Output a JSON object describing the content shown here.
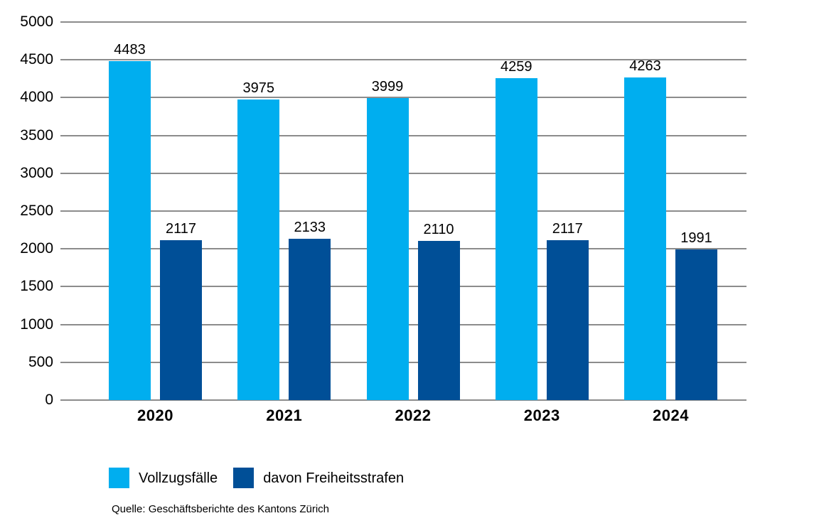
{
  "chart_data": {
    "type": "bar",
    "categories": [
      "2020",
      "2021",
      "2022",
      "2023",
      "2024"
    ],
    "series": [
      {
        "name": "Vollzugsfälle",
        "color": "#00AEEF",
        "values": [
          4483,
          3975,
          3999,
          4259,
          4263
        ]
      },
      {
        "name": "davon Freiheitsstrafen",
        "color": "#004F97",
        "values": [
          2117,
          2133,
          2110,
          2117,
          1991
        ]
      }
    ],
    "ylim": [
      0,
      5000
    ],
    "ytick_step": 500,
    "grid": true,
    "legend_position": "bottom-left",
    "source": "Quelle: Geschäftsberichte des Kantons Zürich"
  },
  "colors": {
    "gridline": "#8c8c8c",
    "text": "#000000",
    "background": "#ffffff"
  }
}
